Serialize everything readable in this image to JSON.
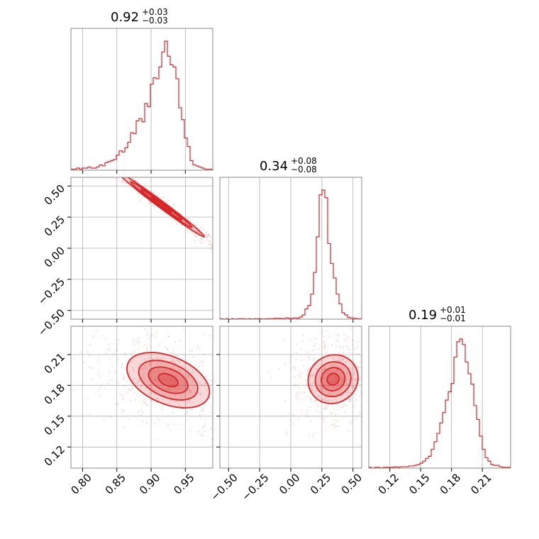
{
  "colors": {
    "accent": "#d62728",
    "grid": "#b0b0b0",
    "frame": "#888888"
  },
  "chart_data": {
    "type": "corner",
    "grid": true,
    "parameters": [
      {
        "title": {
          "median": "0.92",
          "plus": "+0.03",
          "minus": "−0.03"
        },
        "range": [
          0.783,
          0.99
        ],
        "ticks": [
          0.8,
          0.85,
          0.9,
          0.95
        ],
        "tick_labels": [
          "0.80",
          "0.85",
          "0.90",
          "0.95"
        ]
      },
      {
        "title": {
          "median": "0.34",
          "plus": "+0.08",
          "minus": "−0.08"
        },
        "range": [
          -0.57,
          0.57
        ],
        "ticks": [
          -0.5,
          -0.25,
          0.0,
          0.25,
          0.5
        ],
        "tick_labels": [
          "−0.50",
          "−0.25",
          "0.00",
          "0.25",
          "0.50"
        ]
      },
      {
        "title": {
          "median": "0.19",
          "plus": "+0.01",
          "minus": "−0.01"
        },
        "range": [
          0.0995,
          0.2375
        ],
        "ticks": [
          0.12,
          0.15,
          0.18,
          0.21
        ],
        "tick_labels": [
          "0.12",
          "0.15",
          "0.18",
          "0.21"
        ]
      }
    ],
    "histograms": [
      {
        "param": 0,
        "bin_edges_start": 0.783,
        "bin_width": 0.00414,
        "counts": [
          1,
          1,
          2,
          1,
          2,
          2,
          3,
          2,
          2,
          3,
          5,
          4,
          7,
          8,
          9,
          10,
          14,
          18,
          17,
          21,
          26,
          35,
          34,
          46,
          48,
          45,
          62,
          59,
          80,
          86,
          85,
          96,
          110,
          120,
          106,
          98,
          96,
          85,
          58,
          47,
          30,
          22,
          9,
          5,
          4,
          3,
          2,
          1,
          1,
          1
        ]
      },
      {
        "param": 1,
        "bin_edges_start": -0.57,
        "bin_width": 0.0228,
        "counts": [
          1,
          0,
          1,
          0,
          1,
          0,
          1,
          1,
          1,
          0,
          1,
          0,
          1,
          1,
          1,
          0,
          1,
          1,
          1,
          2,
          2,
          2,
          1,
          3,
          2,
          2,
          3,
          2,
          5,
          10,
          24,
          32,
          59,
          110,
          194,
          293,
          304,
          286,
          178,
          131,
          97,
          59,
          36,
          15,
          10,
          4,
          3,
          2,
          1,
          1
        ]
      },
      {
        "param": 2,
        "bin_edges_start": 0.0995,
        "bin_width": 0.00276,
        "counts": [
          1,
          0,
          1,
          1,
          0,
          1,
          1,
          1,
          1,
          2,
          1,
          2,
          2,
          2,
          3,
          3,
          4,
          5,
          7,
          10,
          14,
          17,
          27,
          38,
          50,
          65,
          80,
          98,
          110,
          122,
          160,
          182,
          186,
          178,
          153,
          136,
          121,
          90,
          70,
          46,
          27,
          15,
          10,
          5,
          4,
          4,
          2,
          1,
          1,
          1
        ]
      }
    ],
    "joint": [
      {
        "x": 0,
        "y": 1,
        "center": [
          0.915,
          0.35
        ],
        "slope": -4.1,
        "sx": 0.03,
        "sy_perp": 0.018,
        "correlation": -0.98
      },
      {
        "x": 0,
        "y": 2,
        "center": [
          0.925,
          0.185
        ],
        "slope": -0.28,
        "sx": 0.028,
        "sy_perp": 0.011,
        "correlation": -0.6
      },
      {
        "x": 1,
        "y": 2,
        "center": [
          0.34,
          0.186
        ],
        "slope": 0.085,
        "sx": 0.08,
        "sy_perp": 0.011,
        "correlation": 0.6
      }
    ]
  }
}
